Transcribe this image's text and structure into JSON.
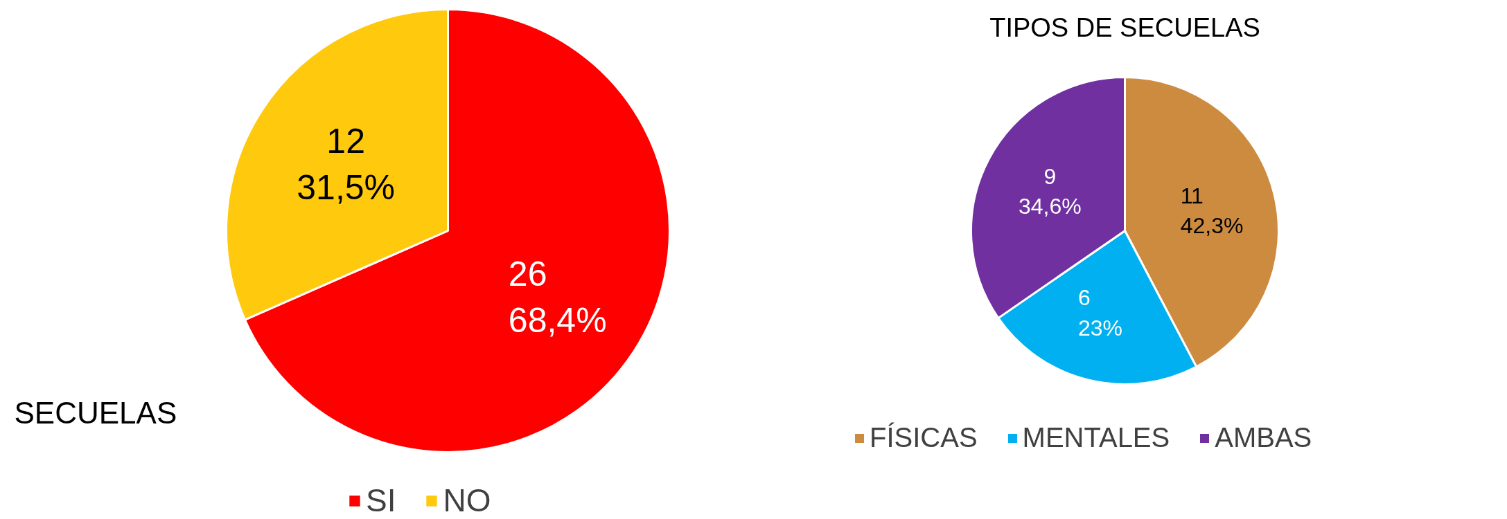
{
  "chart_data": [
    {
      "type": "pie",
      "title": "SECUELAS",
      "categories": [
        "SI",
        "NO"
      ],
      "values": [
        26,
        12
      ],
      "colors": [
        "#ff0000",
        "#ffc90e"
      ],
      "value_labels": [
        "26\n68,4%",
        "12\n31,5%"
      ],
      "legend": "bottom"
    },
    {
      "type": "pie",
      "title": "TIPOS DE SECUELAS",
      "categories": [
        "FÍSICAS",
        "MENTALES",
        "AMBAS"
      ],
      "values": [
        11,
        6,
        9
      ],
      "colors": [
        "#cd8b40",
        "#00b0f0",
        "#7030a0"
      ],
      "value_labels": [
        "11\n42,3%",
        "6\n23%",
        "9\n34,6%"
      ],
      "legend": "bottom"
    }
  ]
}
